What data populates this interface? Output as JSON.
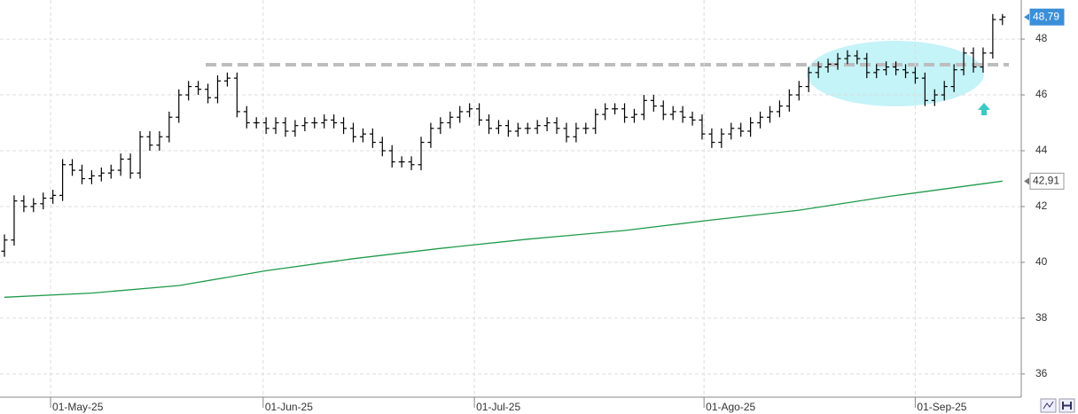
{
  "chart_data": {
    "type": "ohlc",
    "bar_color": "#000000",
    "open": [
      40.4,
      40.8,
      42.2,
      42.0,
      42.1,
      42.3,
      42.4,
      43.5,
      43.3,
      43.0,
      43.1,
      43.2,
      43.3,
      43.7,
      43.2,
      44.5,
      44.2,
      44.5,
      45.2,
      46.0,
      46.3,
      46.2,
      45.9,
      46.5,
      46.6,
      45.4,
      45.0,
      45.0,
      44.8,
      45.0,
      44.7,
      44.9,
      45.0,
      45.0,
      45.1,
      45.0,
      44.8,
      44.5,
      44.6,
      44.3,
      44.0,
      43.6,
      43.6,
      43.5,
      44.3,
      44.8,
      45.0,
      45.2,
      45.4,
      45.5,
      45.1,
      44.8,
      44.9,
      44.7,
      44.8,
      44.8,
      44.9,
      45.0,
      44.8,
      44.5,
      44.8,
      44.8,
      45.3,
      45.5,
      45.5,
      45.2,
      45.3,
      45.8,
      45.6,
      45.3,
      45.4,
      45.2,
      45.1,
      44.6,
      44.3,
      44.6,
      44.8,
      44.7,
      45.0,
      45.2,
      45.4,
      45.6,
      46.0,
      46.3,
      46.8,
      47.0,
      47.1,
      47.3,
      47.4,
      47.3,
      46.8,
      46.9,
      47.0,
      46.9,
      46.8,
      46.6,
      45.8,
      46.0,
      46.3,
      46.9,
      47.5,
      47.0,
      47.5,
      48.7
    ],
    "high": [
      41.0,
      42.4,
      42.4,
      42.3,
      42.5,
      42.6,
      43.7,
      43.7,
      43.5,
      43.3,
      43.4,
      43.5,
      43.9,
      43.9,
      44.7,
      44.7,
      44.7,
      45.4,
      46.2,
      46.5,
      46.5,
      46.4,
      46.7,
      46.8,
      46.8,
      45.6,
      45.2,
      45.2,
      45.2,
      45.2,
      45.1,
      45.2,
      45.2,
      45.3,
      45.3,
      45.2,
      45.0,
      44.8,
      44.8,
      44.5,
      44.2,
      43.8,
      43.8,
      44.5,
      45.0,
      45.2,
      45.4,
      45.6,
      45.7,
      45.7,
      45.3,
      45.1,
      45.1,
      45.0,
      45.0,
      45.1,
      45.2,
      45.2,
      45.0,
      45.0,
      45.0,
      45.5,
      45.7,
      45.7,
      45.7,
      45.5,
      46.0,
      46.0,
      45.8,
      45.6,
      45.6,
      45.4,
      45.3,
      44.8,
      44.8,
      45.0,
      45.0,
      45.2,
      45.4,
      45.6,
      45.8,
      46.2,
      46.5,
      47.0,
      47.2,
      47.3,
      47.5,
      47.6,
      47.6,
      47.5,
      47.1,
      47.2,
      47.2,
      47.1,
      47.0,
      46.8,
      46.2,
      46.5,
      47.1,
      47.7,
      47.7,
      47.7,
      48.9,
      48.9
    ],
    "low": [
      40.2,
      40.6,
      41.8,
      41.8,
      41.9,
      42.1,
      42.2,
      43.1,
      42.8,
      42.8,
      42.9,
      43.0,
      43.1,
      43.0,
      43.0,
      44.0,
      44.0,
      44.3,
      45.0,
      45.8,
      46.0,
      45.7,
      45.7,
      46.3,
      45.2,
      44.8,
      44.8,
      44.6,
      44.6,
      44.5,
      44.5,
      44.7,
      44.8,
      44.8,
      44.8,
      44.6,
      44.3,
      44.3,
      44.1,
      43.8,
      43.4,
      43.4,
      43.3,
      43.3,
      44.1,
      44.6,
      44.8,
      45.0,
      45.2,
      44.9,
      44.6,
      44.6,
      44.5,
      44.5,
      44.6,
      44.6,
      44.7,
      44.6,
      44.3,
      44.3,
      44.6,
      44.6,
      45.1,
      45.3,
      45.0,
      45.0,
      45.1,
      45.4,
      45.1,
      45.1,
      45.0,
      44.9,
      44.4,
      44.1,
      44.1,
      44.4,
      44.5,
      44.5,
      44.8,
      45.0,
      45.2,
      45.4,
      45.8,
      46.1,
      46.6,
      46.8,
      46.9,
      47.1,
      47.1,
      46.6,
      46.6,
      46.7,
      46.7,
      46.6,
      46.4,
      45.6,
      45.6,
      45.8,
      46.1,
      46.7,
      46.8,
      46.8,
      47.3,
      48.5
    ],
    "close": [
      40.8,
      42.2,
      42.0,
      42.1,
      42.3,
      42.4,
      43.5,
      43.3,
      43.0,
      43.1,
      43.2,
      43.3,
      43.7,
      43.2,
      44.5,
      44.2,
      44.5,
      45.2,
      46.0,
      46.3,
      46.2,
      45.9,
      46.5,
      46.6,
      45.4,
      45.0,
      45.0,
      44.8,
      45.0,
      44.7,
      44.9,
      45.0,
      45.0,
      45.1,
      45.0,
      44.8,
      44.5,
      44.6,
      44.3,
      44.0,
      43.6,
      43.6,
      43.5,
      44.3,
      44.8,
      45.0,
      45.2,
      45.4,
      45.5,
      45.1,
      44.8,
      44.9,
      44.7,
      44.8,
      44.8,
      44.9,
      45.0,
      44.8,
      44.5,
      44.8,
      44.8,
      45.3,
      45.5,
      45.5,
      45.2,
      45.3,
      45.8,
      45.6,
      45.3,
      45.4,
      45.2,
      45.1,
      44.6,
      44.3,
      44.6,
      44.8,
      44.7,
      45.0,
      45.2,
      45.4,
      45.6,
      46.0,
      46.3,
      46.8,
      47.0,
      47.1,
      47.3,
      47.4,
      47.3,
      46.8,
      46.9,
      47.0,
      46.9,
      46.8,
      46.6,
      45.8,
      46.0,
      46.3,
      46.9,
      47.5,
      47.0,
      47.5,
      48.7,
      48.79
    ],
    "moving_average": {
      "color": "#1f9a4a",
      "x": [
        0,
        9,
        18,
        27,
        36,
        45,
        54,
        64,
        73,
        82,
        91,
        103
      ],
      "values": [
        38.75,
        38.9,
        39.17,
        39.7,
        40.13,
        40.5,
        40.83,
        41.14,
        41.52,
        41.87,
        42.35,
        42.91
      ]
    },
    "resistance": {
      "value": 47.08,
      "color": "#bdbdbd"
    },
    "last_labels": [
      {
        "value": 48.79,
        "label": "48,79"
      },
      {
        "value": 42.91,
        "label": "42,91"
      }
    ],
    "xlim": [
      -0.46,
      104.94
    ],
    "ylim": [
      35.17,
      49.4
    ],
    "yticks": [
      36,
      38,
      40,
      42,
      44,
      46,
      48
    ],
    "xticks": [
      {
        "value": 4.76,
        "label": "01-May-25"
      },
      {
        "value": 26.7,
        "label": "01-Jun-25"
      },
      {
        "value": 48.5,
        "label": "01-Jul-25"
      },
      {
        "value": 72.2,
        "label": "01-Ago-25"
      },
      {
        "value": 94.0,
        "label": "01-Sep-25"
      }
    ],
    "grid": true
  }
}
